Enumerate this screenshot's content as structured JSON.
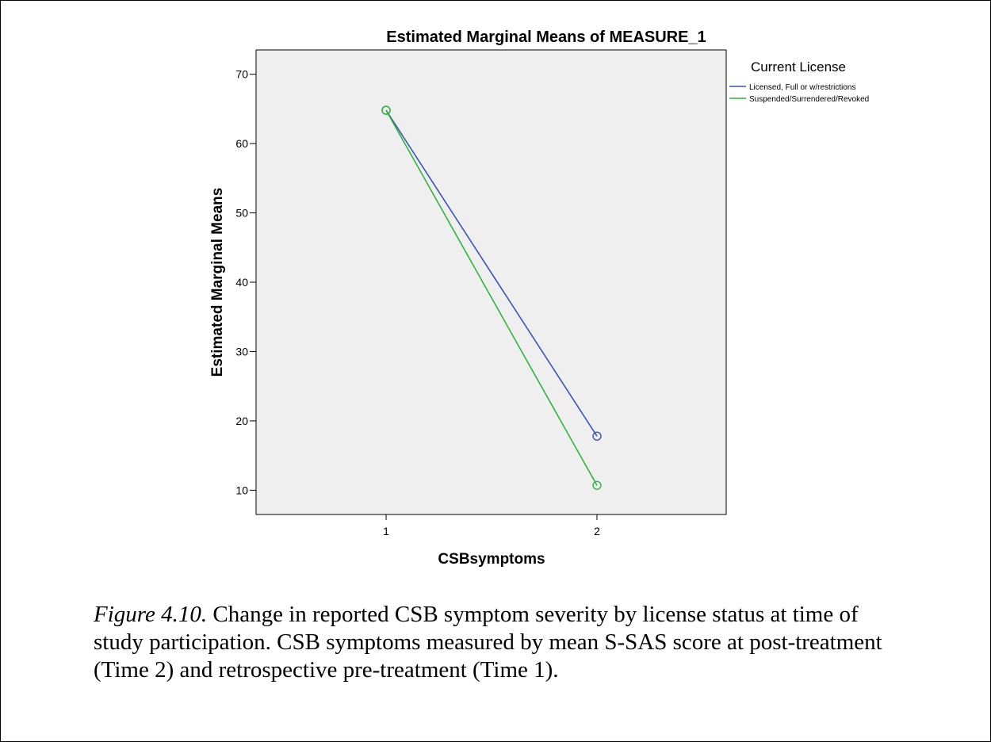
{
  "chart_data": {
    "type": "line",
    "title": "Estimated Marginal Means of MEASURE_1",
    "xlabel": "CSBsymptoms",
    "ylabel": "Estimated Marginal Means",
    "x": [
      "1",
      "2"
    ],
    "ylim": [
      6.5,
      73.5
    ],
    "yticks": [
      10,
      20,
      30,
      40,
      50,
      60,
      70
    ],
    "legend_title": "Current License",
    "legend_position": "top-right, outside plot area",
    "plot_background": "#efefef",
    "grid": false,
    "markers": "open-circle",
    "series": [
      {
        "name": "Licensed, Full or w/restrictions",
        "color": "#3a55b4",
        "values": [
          64.8,
          17.8
        ]
      },
      {
        "name": "Suspended/Surrendered/Revoked",
        "color": "#30b43c",
        "values": [
          64.8,
          10.7
        ]
      }
    ]
  },
  "caption": {
    "label": "Figure 4.10.",
    "text": " Change in reported CSB symptom severity by license status at time of study participation. CSB symptoms measured by mean S-SAS score at post-treatment (Time 2) and retrospective pre-treatment (Time 1)."
  }
}
